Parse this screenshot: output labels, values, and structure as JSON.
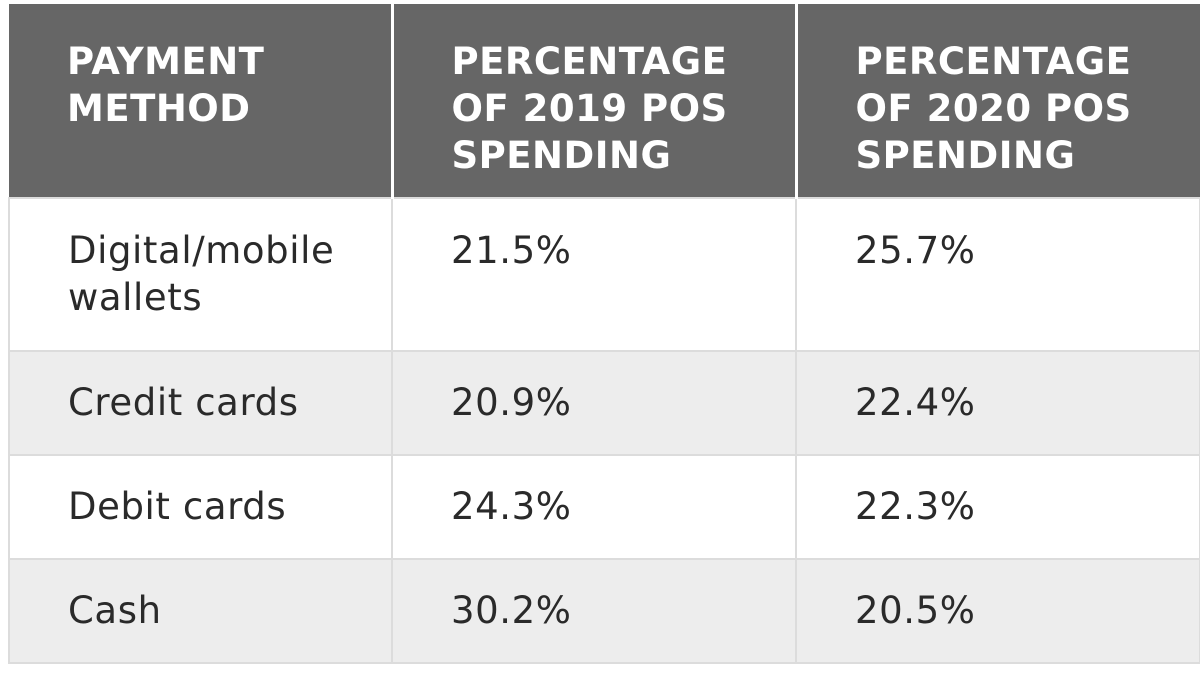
{
  "table": {
    "headers": [
      "PAYMENT METHOD",
      "PERCENTAGE OF 2019 POS SPENDING",
      "PERCENTAGE OF 2020 POS SPENDING"
    ],
    "rows": [
      [
        "Digital/mobile wallets",
        "21.5%",
        "25.7%"
      ],
      [
        "Credit cards",
        "20.9%",
        "22.4%"
      ],
      [
        "Debit cards",
        "24.3%",
        "22.3%"
      ],
      [
        "Cash",
        "30.2%",
        "20.5%"
      ]
    ]
  }
}
